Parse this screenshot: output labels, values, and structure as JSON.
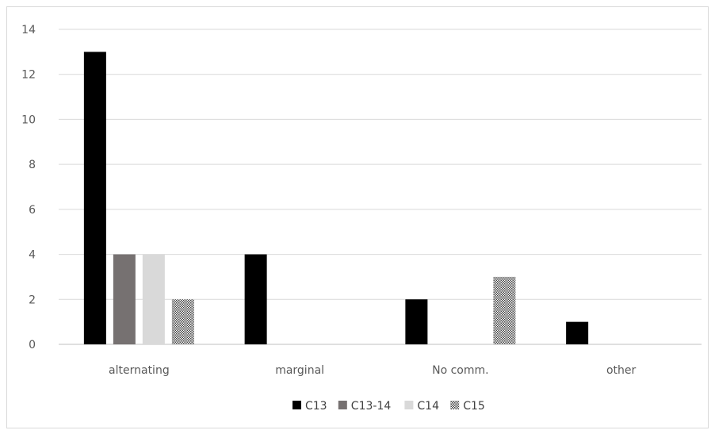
{
  "chart_data": {
    "type": "bar",
    "categories": [
      "alternating",
      "marginal",
      "No comm.",
      "other"
    ],
    "series": [
      {
        "name": "C13",
        "values": [
          13,
          4,
          2,
          1
        ],
        "color": "#000000",
        "pattern": "solid"
      },
      {
        "name": "C13-14",
        "values": [
          4,
          0,
          0,
          0
        ],
        "color": "#767171",
        "pattern": "solid"
      },
      {
        "name": "C14",
        "values": [
          4,
          0,
          0,
          0
        ],
        "color": "#d9d9d9",
        "pattern": "solid"
      },
      {
        "name": "C15",
        "values": [
          2,
          0,
          3,
          0
        ],
        "color": "#808080",
        "pattern": "checker"
      }
    ],
    "ylim": [
      0,
      14
    ],
    "yticks": [
      0,
      2,
      4,
      6,
      8,
      10,
      12,
      14
    ],
    "grid": true,
    "legend": "bottom",
    "title": "",
    "xlabel": "",
    "ylabel": ""
  }
}
